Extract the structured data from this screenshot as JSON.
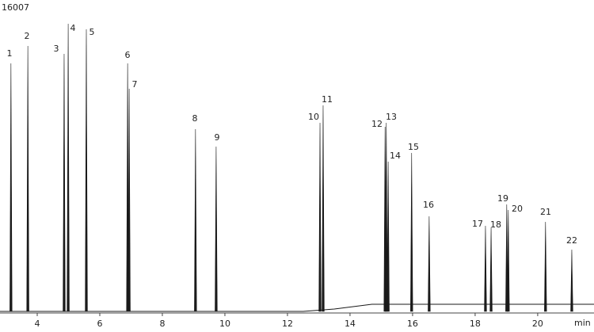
{
  "chart_data": {
    "type": "chromatogram",
    "x_label": "min",
    "xlim": [
      2.81,
      21.8
    ],
    "xticks": [
      4,
      6,
      8,
      10,
      12,
      14,
      16,
      18,
      20
    ],
    "ylim": [
      0,
      16007
    ],
    "yticks": [
      16007
    ],
    "color": "#1a1a1a",
    "peaks": {
      "names": [
        "1",
        "2",
        "3",
        "4",
        "5",
        "6",
        "7",
        "8",
        "9",
        "10",
        "11",
        "12",
        "13",
        "14",
        "15",
        "16",
        "17",
        "18",
        "19",
        "20",
        "21",
        "22"
      ],
      "x": [
        3.16,
        3.7,
        4.86,
        4.99,
        5.57,
        6.89,
        6.94,
        9.06,
        9.72,
        13.04,
        13.14,
        15.12,
        15.16,
        15.22,
        15.97,
        16.53,
        18.33,
        18.51,
        19.01,
        19.06,
        20.25,
        21.09
      ],
      "values": [
        13504,
        14454,
        14022,
        15662,
        15360,
        13504,
        12124,
        9923,
        8974,
        10269,
        11218,
        10053,
        10269,
        8155,
        8629,
        5177,
        4660,
        4573,
        5825,
        5523,
        4875,
        3365
      ]
    },
    "baseline": {
      "x": [
        2.81,
        12.5,
        13.5,
        14.7,
        21.8
      ],
      "values": [
        0,
        0,
        130,
        388,
        388
      ]
    }
  }
}
